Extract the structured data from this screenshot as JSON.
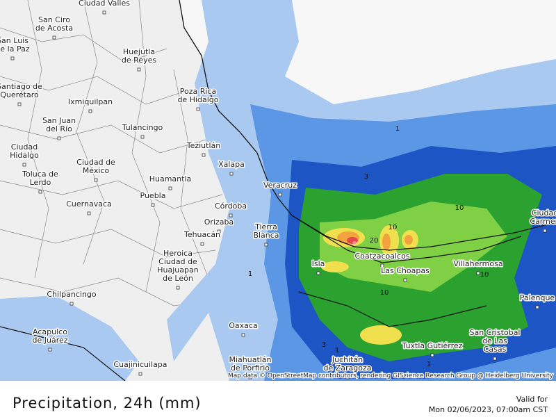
{
  "map": {
    "cities": [
      {
        "lines": [
          "Ciudad Valles"
        ]
      },
      {
        "lines": [
          "San Ciro",
          "de Acosta"
        ]
      },
      {
        "lines": [
          "San Luis",
          "de la Paz"
        ]
      },
      {
        "lines": [
          "Huejutla",
          "de Reyes"
        ]
      },
      {
        "lines": [
          "Santiago de",
          "Querétaro"
        ]
      },
      {
        "lines": [
          "Ixmiquilpan"
        ]
      },
      {
        "lines": [
          "Poza Rica",
          "de Hidalgo"
        ]
      },
      {
        "lines": [
          "San Juan",
          "del Río"
        ]
      },
      {
        "lines": [
          "Tulancingo"
        ]
      },
      {
        "lines": [
          "Teziutlán"
        ]
      },
      {
        "lines": [
          "Ciudad",
          "Hidalgo"
        ]
      },
      {
        "lines": [
          "Ciudad de",
          "México"
        ]
      },
      {
        "lines": [
          "Toluca de",
          "Lerdo"
        ]
      },
      {
        "lines": [
          "Xalapa"
        ]
      },
      {
        "lines": [
          "Huamantla"
        ]
      },
      {
        "lines": [
          "Puebla"
        ]
      },
      {
        "lines": [
          "Veracruz"
        ]
      },
      {
        "lines": [
          "Cuernavaca"
        ]
      },
      {
        "lines": [
          "Córdoba"
        ]
      },
      {
        "lines": [
          "Orizaba"
        ]
      },
      {
        "lines": [
          "Tehuacán"
        ]
      },
      {
        "lines": [
          "Tierra",
          "Blanca"
        ]
      },
      {
        "lines": [
          "Heroica",
          "Ciudad de",
          "Huajuapan",
          "de León"
        ]
      },
      {
        "lines": [
          "Coatzacoalcos"
        ]
      },
      {
        "lines": [
          "Isla"
        ]
      },
      {
        "lines": [
          "Las Choapas"
        ]
      },
      {
        "lines": [
          "Villahermosa"
        ]
      },
      {
        "lines": [
          "Chilpancingo"
        ]
      },
      {
        "lines": [
          "Palenque"
        ]
      },
      {
        "lines": [
          "Oaxaca"
        ]
      },
      {
        "lines": [
          "Acapulco",
          "de Juárez"
        ]
      },
      {
        "lines": [
          "San Cristobal",
          "de Las",
          "Casas"
        ]
      },
      {
        "lines": [
          "Tuxtla Gutiérrez"
        ]
      },
      {
        "lines": [
          "Cuajinicuilapa"
        ]
      },
      {
        "lines": [
          "Miahuatlán",
          "de Porfirio"
        ]
      },
      {
        "lines": [
          "Juchitán",
          "de Zaragoza"
        ]
      },
      {
        "lines": [
          "Ciudad",
          "Carmen"
        ]
      }
    ],
    "contour_labels": [
      1,
      1,
      1,
      1,
      3,
      3,
      10,
      10,
      10,
      10,
      20
    ],
    "attribution": "Map data © OpenStreetMap contributors, rendering GIScience Research Group @ Heidelberg University"
  },
  "footer": {
    "title": "Precipitation, 24h (mm)",
    "valid_label": "Valid for",
    "valid_time": "Mon 02/06/2023, 07:00am CST"
  }
}
